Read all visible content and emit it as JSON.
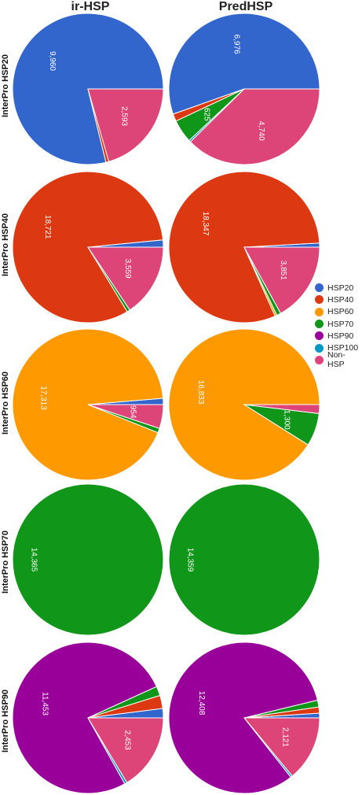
{
  "columns": [
    "ir-HSP",
    "PredHSP"
  ],
  "rows": [
    "InterPro HSP20",
    "InterPro HSP40",
    "InterPro HSP60",
    "InterPro HSP70",
    "InterPro HSP90"
  ],
  "legend": [
    {
      "name": "HSP20",
      "color": "#3366cc"
    },
    {
      "name": "HSP40",
      "color": "#dc3912"
    },
    {
      "name": "HSP60",
      "color": "#ff9900"
    },
    {
      "name": "HSP70",
      "color": "#109618"
    },
    {
      "name": "HSP90",
      "color": "#990099"
    },
    {
      "name": "HSP100",
      "color": "#0099c6"
    },
    {
      "name": "Non-HSP",
      "color": "#dd4477"
    }
  ],
  "chart_data": [
    {
      "type": "pie",
      "row": "InterPro HSP20",
      "column": "ir-HSP",
      "slices": [
        {
          "category": "HSP20",
          "value": 9960,
          "label": "9,960"
        },
        {
          "category": "HSP40",
          "value": 80
        },
        {
          "category": "Non-HSP",
          "value": 2593,
          "label": "2,593"
        }
      ]
    },
    {
      "type": "pie",
      "row": "InterPro HSP20",
      "column": "PredHSP",
      "slices": [
        {
          "category": "HSP20",
          "value": 6976,
          "label": "6,976"
        },
        {
          "category": "HSP40",
          "value": 200
        },
        {
          "category": "HSP70",
          "value": 625,
          "label": "625"
        },
        {
          "category": "HSP100",
          "value": 50
        },
        {
          "category": "Non-HSP",
          "value": 4740,
          "label": "4,740"
        }
      ]
    },
    {
      "type": "pie",
      "row": "InterPro HSP40",
      "column": "ir-HSP",
      "slices": [
        {
          "category": "HSP20",
          "value": 350
        },
        {
          "category": "HSP40",
          "value": 18721,
          "label": "18,721"
        },
        {
          "category": "HSP70",
          "value": 150
        },
        {
          "category": "Non-HSP",
          "value": 3559,
          "label": "3,559"
        }
      ]
    },
    {
      "type": "pie",
      "row": "InterPro HSP40",
      "column": "PredHSP",
      "slices": [
        {
          "category": "HSP20",
          "value": 200
        },
        {
          "category": "HSP40",
          "value": 18347,
          "label": "18,347"
        },
        {
          "category": "HSP60",
          "value": 100
        },
        {
          "category": "HSP70",
          "value": 200
        },
        {
          "category": "Non-HSP",
          "value": 3851,
          "label": "3,851"
        }
      ]
    },
    {
      "type": "pie",
      "row": "InterPro HSP60",
      "column": "ir-HSP",
      "slices": [
        {
          "category": "HSP20",
          "value": 250
        },
        {
          "category": "HSP60",
          "value": 17313,
          "label": "17,313"
        },
        {
          "category": "HSP70",
          "value": 180
        },
        {
          "category": "Non-HSP",
          "value": 954,
          "label": "954"
        }
      ]
    },
    {
      "type": "pie",
      "row": "InterPro HSP60",
      "column": "PredHSP",
      "slices": [
        {
          "category": "HSP60",
          "value": 16833,
          "label": "16,833"
        },
        {
          "category": "HSP70",
          "value": 1300,
          "label": "1,300"
        },
        {
          "category": "Non-HSP",
          "value": 350
        }
      ]
    },
    {
      "type": "pie",
      "row": "InterPro HSP70",
      "column": "ir-HSP",
      "slices": [
        {
          "category": "HSP70",
          "value": 14365,
          "label": "14,365"
        }
      ]
    },
    {
      "type": "pie",
      "row": "InterPro HSP70",
      "column": "PredHSP",
      "slices": [
        {
          "category": "HSP70",
          "value": 14359,
          "label": "14,359"
        }
      ]
    },
    {
      "type": "pie",
      "row": "InterPro HSP90",
      "column": "ir-HSP",
      "slices": [
        {
          "category": "HSP20",
          "value": 300
        },
        {
          "category": "HSP40",
          "value": 420
        },
        {
          "category": "HSP70",
          "value": 300
        },
        {
          "category": "HSP90",
          "value": 11453,
          "label": "11,453"
        },
        {
          "category": "HSP100",
          "value": 80
        },
        {
          "category": "Non-HSP",
          "value": 2453,
          "label": "2,453"
        }
      ]
    },
    {
      "type": "pie",
      "row": "InterPro HSP90",
      "column": "PredHSP",
      "slices": [
        {
          "category": "HSP20",
          "value": 150
        },
        {
          "category": "HSP40",
          "value": 200
        },
        {
          "category": "HSP70",
          "value": 220
        },
        {
          "category": "HSP90",
          "value": 12408,
          "label": "12,408"
        },
        {
          "category": "HSP100",
          "value": 60
        },
        {
          "category": "Non-HSP",
          "value": 2121,
          "label": "2,121"
        }
      ]
    }
  ]
}
